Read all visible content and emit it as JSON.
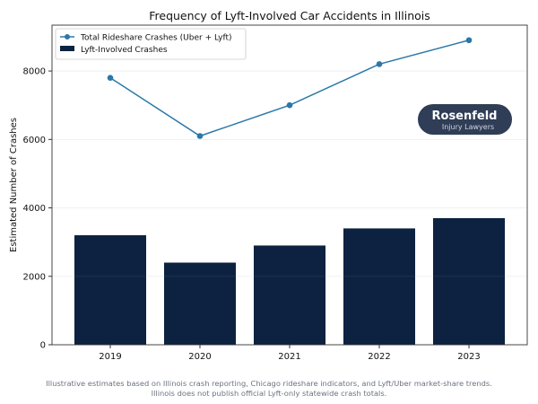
{
  "chart_data": {
    "type": "bar+line",
    "title": "Frequency of Lyft-Involved Car Accidents in Illinois",
    "xlabel": "",
    "ylabel": "Estimated Number of Crashes",
    "categories": [
      "2019",
      "2020",
      "2021",
      "2022",
      "2023"
    ],
    "series": [
      {
        "name": "Total Rideshare Crashes (Uber + Lyft)",
        "type": "line",
        "color": "#2a78a8",
        "values": [
          7800,
          6100,
          7000,
          8200,
          8900
        ]
      },
      {
        "name": "Lyft-Involved Crashes",
        "type": "bar",
        "color": "#0c2240",
        "values": [
          3200,
          2400,
          2900,
          3400,
          3700
        ]
      }
    ],
    "yticks": [
      0,
      2000,
      4000,
      6000,
      8000
    ],
    "ylim": [
      0,
      9340
    ],
    "grid": "horizontal",
    "legend": "top-left"
  },
  "logo": {
    "name": "Rosenfeld",
    "subtitle": "Injury Lawyers"
  },
  "footnote": {
    "line1": "Illustrative estimates based on Illinois crash reporting, Chicago rideshare indicators, and Lyft/Uber market-share trends.",
    "line2": "Illinois does not publish official Lyft-only statewide crash totals."
  }
}
